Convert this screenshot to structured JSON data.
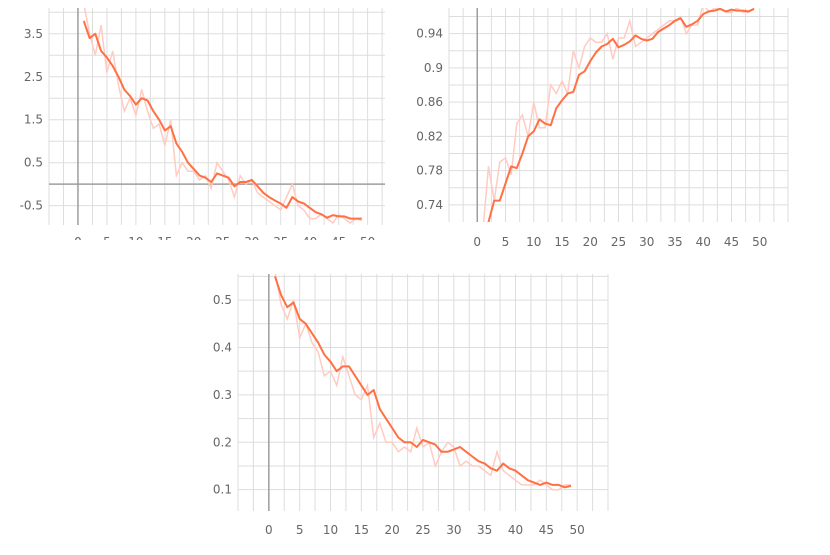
{
  "chart_data": [
    {
      "type": "line",
      "grid": true,
      "xlim": [
        -5,
        53
      ],
      "ylim": [
        -0.95,
        4.1
      ],
      "xticks": [
        "0",
        "5",
        "10",
        "15",
        "20",
        "25",
        "30",
        "35",
        "40",
        "45",
        "50"
      ],
      "yticks": [
        "3.5",
        "2.5",
        "1.5",
        "0.5",
        "-0.5"
      ],
      "colors": {
        "smoothed": "#ff7043",
        "raw": "#ffcbc2"
      },
      "x": [
        1,
        2,
        3,
        4,
        5,
        6,
        7,
        8,
        9,
        10,
        11,
        12,
        13,
        14,
        15,
        16,
        17,
        18,
        19,
        20,
        21,
        22,
        23,
        24,
        25,
        26,
        27,
        28,
        29,
        30,
        31,
        32,
        33,
        34,
        35,
        36,
        37,
        38,
        39,
        40,
        41,
        42,
        43,
        44,
        45,
        46,
        47,
        48,
        49
      ],
      "series": [
        {
          "values": [
            4.2,
            3.5,
            3.0,
            3.7,
            2.6,
            3.1,
            2.3,
            1.7,
            2.0,
            1.6,
            2.2,
            1.7,
            1.3,
            1.4,
            0.9,
            1.5,
            0.2,
            0.5,
            0.3,
            0.3,
            0.1,
            0.2,
            -0.1,
            0.5,
            0.3,
            0.1,
            -0.3,
            0.2,
            0.0,
            0.1,
            -0.2,
            -0.3,
            -0.4,
            -0.5,
            -0.6,
            -0.3,
            0.0,
            -0.5,
            -0.6,
            -0.8,
            -0.8,
            -0.7,
            -0.8,
            -0.9,
            -0.7,
            -0.8,
            -0.9,
            -0.8,
            -0.85
          ]
        },
        {
          "values": [
            3.8,
            3.4,
            3.5,
            3.1,
            2.95,
            2.75,
            2.5,
            2.2,
            2.05,
            1.85,
            2.0,
            1.95,
            1.7,
            1.5,
            1.25,
            1.35,
            0.95,
            0.75,
            0.5,
            0.35,
            0.2,
            0.15,
            0.05,
            0.25,
            0.2,
            0.15,
            -0.05,
            0.05,
            0.05,
            0.1,
            -0.05,
            -0.2,
            -0.3,
            -0.38,
            -0.45,
            -0.55,
            -0.3,
            -0.4,
            -0.45,
            -0.55,
            -0.65,
            -0.7,
            -0.78,
            -0.72,
            -0.75,
            -0.75,
            -0.8,
            -0.8,
            -0.8
          ]
        }
      ]
    },
    {
      "type": "line",
      "grid": true,
      "xlim": [
        -5,
        55
      ],
      "ylim": [
        0.72,
        0.97
      ],
      "xticks": [
        "0",
        "5",
        "10",
        "15",
        "20",
        "25",
        "30",
        "35",
        "40",
        "45",
        "50"
      ],
      "yticks": [
        "0.94",
        "0.9",
        "0.86",
        "0.82",
        "0.78",
        "0.74"
      ],
      "colors": {
        "smoothed": "#ff7043",
        "raw": "#ffcbc2"
      },
      "x": [
        1,
        2,
        3,
        4,
        5,
        6,
        7,
        8,
        9,
        10,
        11,
        12,
        13,
        14,
        15,
        16,
        17,
        18,
        19,
        20,
        21,
        22,
        23,
        24,
        25,
        26,
        27,
        28,
        29,
        30,
        31,
        32,
        33,
        34,
        35,
        36,
        37,
        38,
        39,
        40,
        41,
        42,
        43,
        44,
        45,
        46,
        47,
        48,
        49
      ],
      "series": [
        {
          "values": [
            0.71,
            0.785,
            0.745,
            0.79,
            0.795,
            0.775,
            0.835,
            0.845,
            0.82,
            0.86,
            0.83,
            0.83,
            0.88,
            0.87,
            0.885,
            0.87,
            0.92,
            0.9,
            0.925,
            0.935,
            0.93,
            0.93,
            0.94,
            0.91,
            0.935,
            0.935,
            0.955,
            0.925,
            0.93,
            0.935,
            0.94,
            0.945,
            0.95,
            0.955,
            0.955,
            0.96,
            0.94,
            0.95,
            0.95,
            0.975,
            0.965,
            0.97,
            0.97,
            0.965,
            0.965,
            0.97,
            0.965,
            0.965,
            0.97
          ]
        },
        {
          "values": [
            0.705,
            0.72,
            0.745,
            0.745,
            0.765,
            0.785,
            0.783,
            0.8,
            0.82,
            0.826,
            0.84,
            0.835,
            0.833,
            0.853,
            0.862,
            0.87,
            0.872,
            0.892,
            0.896,
            0.908,
            0.918,
            0.925,
            0.928,
            0.934,
            0.924,
            0.927,
            0.931,
            0.938,
            0.934,
            0.932,
            0.934,
            0.942,
            0.946,
            0.95,
            0.955,
            0.958,
            0.948,
            0.951,
            0.955,
            0.963,
            0.966,
            0.967,
            0.969,
            0.966,
            0.968,
            0.967,
            0.967,
            0.966,
            0.969
          ]
        }
      ]
    },
    {
      "type": "line",
      "grid": true,
      "xlim": [
        -5,
        55
      ],
      "ylim": [
        0.055,
        0.555
      ],
      "xticks": [
        "0",
        "5",
        "10",
        "15",
        "20",
        "25",
        "30",
        "35",
        "40",
        "45",
        "50"
      ],
      "yticks": [
        "0.5",
        "0.4",
        "0.3",
        "0.2",
        "0.1"
      ],
      "colors": {
        "smoothed": "#ff7043",
        "raw": "#ffcbc2"
      },
      "x": [
        1,
        2,
        3,
        4,
        5,
        6,
        7,
        8,
        9,
        10,
        11,
        12,
        13,
        14,
        15,
        16,
        17,
        18,
        19,
        20,
        21,
        22,
        23,
        24,
        25,
        26,
        27,
        28,
        29,
        30,
        31,
        32,
        33,
        34,
        35,
        36,
        37,
        38,
        39,
        40,
        41,
        42,
        43,
        44,
        45,
        46,
        47,
        48,
        49
      ],
      "series": [
        {
          "values": [
            0.56,
            0.49,
            0.46,
            0.5,
            0.42,
            0.45,
            0.41,
            0.39,
            0.34,
            0.35,
            0.32,
            0.38,
            0.34,
            0.3,
            0.29,
            0.32,
            0.21,
            0.24,
            0.2,
            0.2,
            0.18,
            0.19,
            0.18,
            0.23,
            0.19,
            0.2,
            0.15,
            0.18,
            0.2,
            0.19,
            0.15,
            0.16,
            0.15,
            0.15,
            0.14,
            0.13,
            0.18,
            0.14,
            0.13,
            0.12,
            0.11,
            0.11,
            0.11,
            0.12,
            0.11,
            0.1,
            0.1,
            0.11,
            0.11
          ]
        },
        {
          "values": [
            0.55,
            0.51,
            0.485,
            0.495,
            0.46,
            0.45,
            0.43,
            0.41,
            0.385,
            0.37,
            0.35,
            0.36,
            0.36,
            0.34,
            0.32,
            0.3,
            0.31,
            0.27,
            0.25,
            0.23,
            0.21,
            0.2,
            0.2,
            0.19,
            0.205,
            0.2,
            0.195,
            0.18,
            0.18,
            0.185,
            0.19,
            0.18,
            0.17,
            0.16,
            0.155,
            0.145,
            0.14,
            0.155,
            0.145,
            0.14,
            0.13,
            0.12,
            0.115,
            0.11,
            0.115,
            0.11,
            0.11,
            0.105,
            0.108
          ]
        }
      ]
    }
  ]
}
